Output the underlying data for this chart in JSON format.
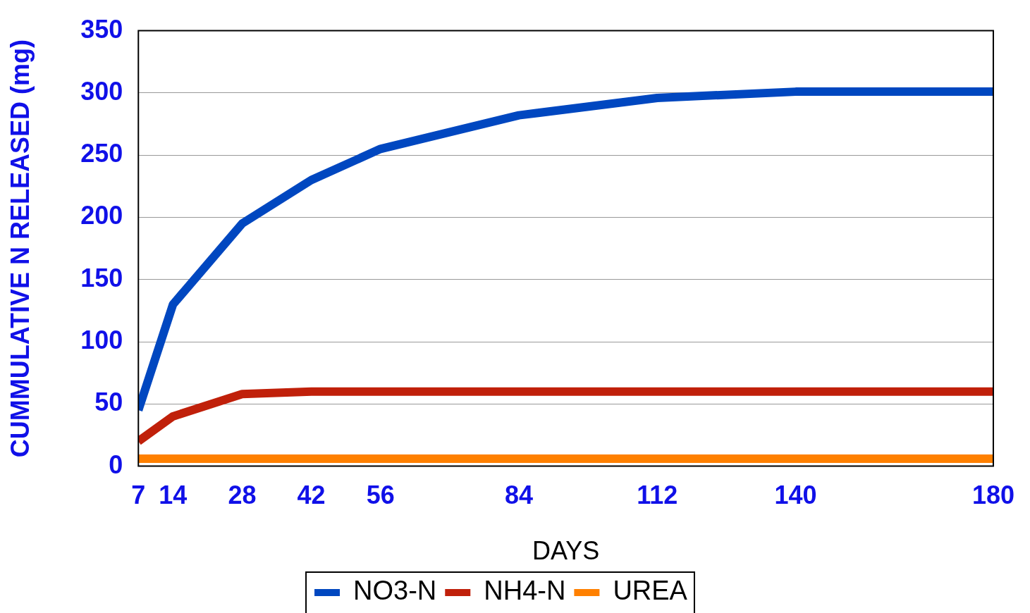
{
  "chart_data": {
    "type": "line",
    "xlabel": "DAYS",
    "ylabel": "CUMMULATIVE N RELEASED (mg)",
    "x": [
      7,
      14,
      28,
      42,
      56,
      84,
      112,
      140,
      180
    ],
    "series": [
      {
        "name": "NO3-N",
        "color": "#0047c0",
        "values": [
          45,
          130,
          195,
          230,
          255,
          282,
          296,
          301,
          301
        ]
      },
      {
        "name": "NH4-N",
        "color": "#c0200a",
        "values": [
          20,
          40,
          58,
          60,
          60,
          60,
          60,
          60,
          60
        ]
      },
      {
        "name": "UREA",
        "color": "#ff8000",
        "values": [
          6,
          6,
          6,
          6,
          6,
          6,
          6,
          6,
          6
        ]
      }
    ],
    "xlim": [
      7,
      180
    ],
    "xticks": [
      7,
      14,
      28,
      42,
      56,
      84,
      112,
      140,
      180
    ],
    "ylim": [
      0,
      350
    ],
    "yticks": [
      0,
      50,
      100,
      150,
      200,
      250,
      300,
      350
    ],
    "grid": "y",
    "legend": "bottom",
    "marker": "none",
    "line_style": "solid"
  }
}
